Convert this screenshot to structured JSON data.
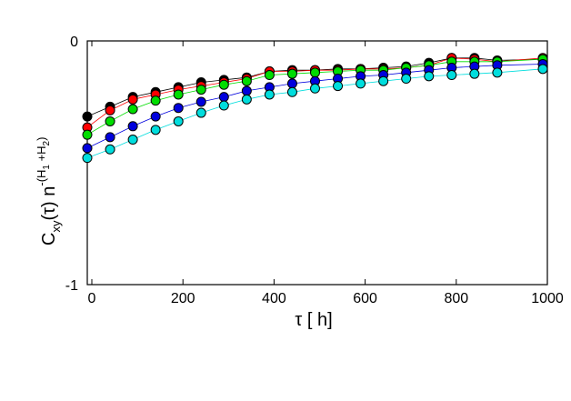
{
  "chart_data": {
    "type": "scatter",
    "xlabel": "τ [ h]",
    "ylabel_main": "C",
    "ylabel_sub": "xy",
    "ylabel_mid": "(τ) n",
    "ylabel_sup": "-(H",
    "ylabel_sup_sub1": "1",
    "ylabel_sup_mid": " +H",
    "ylabel_sup_sub2": "2",
    "ylabel_sup_end": ")",
    "xlim": [
      -10,
      1000
    ],
    "ylim": [
      -1,
      0
    ],
    "xticks": [
      0,
      200,
      400,
      600,
      800,
      1000
    ],
    "xtick_labels": [
      "0",
      "200",
      "400",
      "600",
      "800",
      "1000"
    ],
    "yticks": [
      0,
      -1
    ],
    "ytick_labels": [
      "0",
      "-1"
    ],
    "grid": false,
    "legend": "none",
    "x": [
      -10,
      40,
      90,
      140,
      190,
      240,
      290,
      340,
      390,
      440,
      490,
      540,
      590,
      640,
      690,
      740,
      790,
      840,
      890,
      990
    ],
    "series": [
      {
        "color": "#000000",
        "values": [
          -0.31,
          -0.27,
          -0.23,
          -0.21,
          -0.19,
          -0.17,
          -0.16,
          -0.15,
          -0.125,
          -0.12,
          -0.12,
          -0.115,
          -0.115,
          -0.11,
          -0.105,
          -0.09,
          -0.07,
          -0.07,
          -0.08,
          -0.075
        ]
      },
      {
        "color": "#ff0000",
        "values": [
          -0.355,
          -0.285,
          -0.24,
          -0.22,
          -0.2,
          -0.185,
          -0.17,
          -0.155,
          -0.125,
          -0.125,
          -0.12,
          -0.12,
          -0.115,
          -0.115,
          -0.11,
          -0.1,
          -0.07,
          -0.075,
          -0.085,
          -0.07
        ]
      },
      {
        "color": "#00dd00",
        "values": [
          -0.385,
          -0.33,
          -0.28,
          -0.245,
          -0.22,
          -0.2,
          -0.18,
          -0.165,
          -0.14,
          -0.135,
          -0.13,
          -0.125,
          -0.12,
          -0.12,
          -0.11,
          -0.1,
          -0.085,
          -0.085,
          -0.085,
          -0.075
        ]
      },
      {
        "color": "#0000dd",
        "values": [
          -0.44,
          -0.395,
          -0.35,
          -0.31,
          -0.275,
          -0.25,
          -0.23,
          -0.205,
          -0.19,
          -0.175,
          -0.165,
          -0.155,
          -0.145,
          -0.14,
          -0.13,
          -0.12,
          -0.11,
          -0.105,
          -0.1,
          -0.095
        ]
      },
      {
        "color": "#00dddd",
        "values": [
          -0.48,
          -0.445,
          -0.405,
          -0.365,
          -0.33,
          -0.295,
          -0.265,
          -0.24,
          -0.22,
          -0.21,
          -0.195,
          -0.185,
          -0.175,
          -0.165,
          -0.155,
          -0.145,
          -0.14,
          -0.135,
          -0.13,
          -0.115
        ]
      }
    ]
  }
}
